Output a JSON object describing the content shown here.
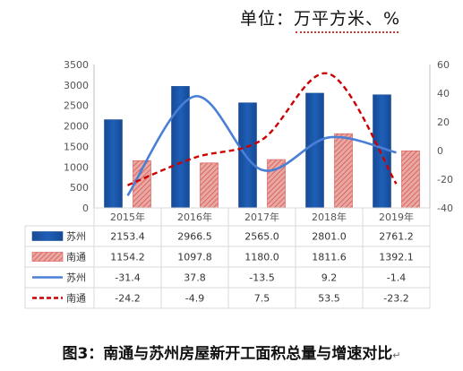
{
  "unit_label": "单位：万平方米、%",
  "caption": "图3：南通与苏州房屋新开工面积总量与增速对比",
  "colors": {
    "suzhou_bar": "#1f5fb8",
    "nantong_bar": "#e8a9a4",
    "nantong_hatch": "#d9534f",
    "suzhou_line": "#4a7fd6",
    "nantong_line": "#cc0000",
    "grid": "#d9d9d9",
    "axis_text": "#555555"
  },
  "chart_data": {
    "type": "bar",
    "categories": [
      "2015年",
      "2016年",
      "2017年",
      "2018年",
      "2019年"
    ],
    "ylim_left": [
      0,
      3500
    ],
    "left_ticks": [
      0,
      500,
      1000,
      1500,
      2000,
      2500,
      3000,
      3500
    ],
    "ylim_right": [
      -40,
      60
    ],
    "right_ticks": [
      -40,
      -20,
      0,
      20,
      40,
      60
    ],
    "grid": false,
    "series": [
      {
        "name": "苏州",
        "kind": "bar",
        "axis": "left",
        "values": [
          2153.4,
          2966.5,
          2565.0,
          2801.0,
          2761.2
        ],
        "labels": [
          "2153.4",
          "2966.5",
          "2565.0",
          "2801.0",
          "2761.2"
        ]
      },
      {
        "name": "南通",
        "kind": "bar",
        "axis": "left",
        "values": [
          1154.2,
          1097.8,
          1180.0,
          1811.6,
          1392.1
        ],
        "labels": [
          "1154.2",
          "1097.8",
          "1180.0",
          "1811.6",
          "1392.1"
        ]
      },
      {
        "name": "苏州",
        "kind": "line",
        "axis": "right",
        "values": [
          -31.4,
          37.8,
          -13.5,
          9.2,
          -1.4
        ],
        "labels": [
          "-31.4",
          "37.8",
          "-13.5",
          "9.2",
          "-1.4"
        ]
      },
      {
        "name": "南通",
        "kind": "line-dashed",
        "axis": "right",
        "values": [
          -24.2,
          -4.9,
          7.5,
          53.5,
          -23.2
        ],
        "labels": [
          "-24.2",
          "-4.9",
          "7.5",
          "53.5",
          "-23.2"
        ]
      }
    ]
  }
}
